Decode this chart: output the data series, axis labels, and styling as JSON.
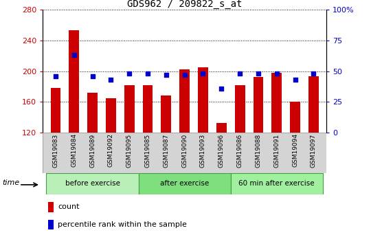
{
  "title": "GDS962 / 209822_s_at",
  "samples": [
    "GSM19083",
    "GSM19084",
    "GSM19089",
    "GSM19092",
    "GSM19095",
    "GSM19085",
    "GSM19087",
    "GSM19090",
    "GSM19093",
    "GSM19096",
    "GSM19086",
    "GSM19088",
    "GSM19091",
    "GSM19094",
    "GSM19097"
  ],
  "counts": [
    178,
    253,
    172,
    165,
    182,
    182,
    168,
    202,
    205,
    133,
    182,
    192,
    198,
    160,
    193
  ],
  "percentile_ranks": [
    46,
    63,
    46,
    43,
    48,
    48,
    47,
    47,
    48,
    36,
    48,
    48,
    48,
    43,
    48
  ],
  "groups": [
    {
      "label": "before exercise",
      "start": 0,
      "end": 5
    },
    {
      "label": "after exercise",
      "start": 5,
      "end": 10
    },
    {
      "label": "60 min after exercise",
      "start": 10,
      "end": 15
    }
  ],
  "group_colors": [
    "#b8f0b8",
    "#7fdf7f",
    "#a0f0a0"
  ],
  "group_border_color": "#40a040",
  "bar_color": "#cc0000",
  "dot_color": "#0000cc",
  "ylim_left": [
    120,
    280
  ],
  "ylim_right": [
    0,
    100
  ],
  "yticks_left": [
    120,
    160,
    200,
    240,
    280
  ],
  "yticks_right": [
    0,
    25,
    50,
    75,
    100
  ],
  "left_tick_color": "#cc0000",
  "right_tick_color": "#0000cc",
  "bar_width": 0.55,
  "dot_size": 18,
  "grid_linestyle": "dotted",
  "label_bg_color": "#d4d4d4"
}
